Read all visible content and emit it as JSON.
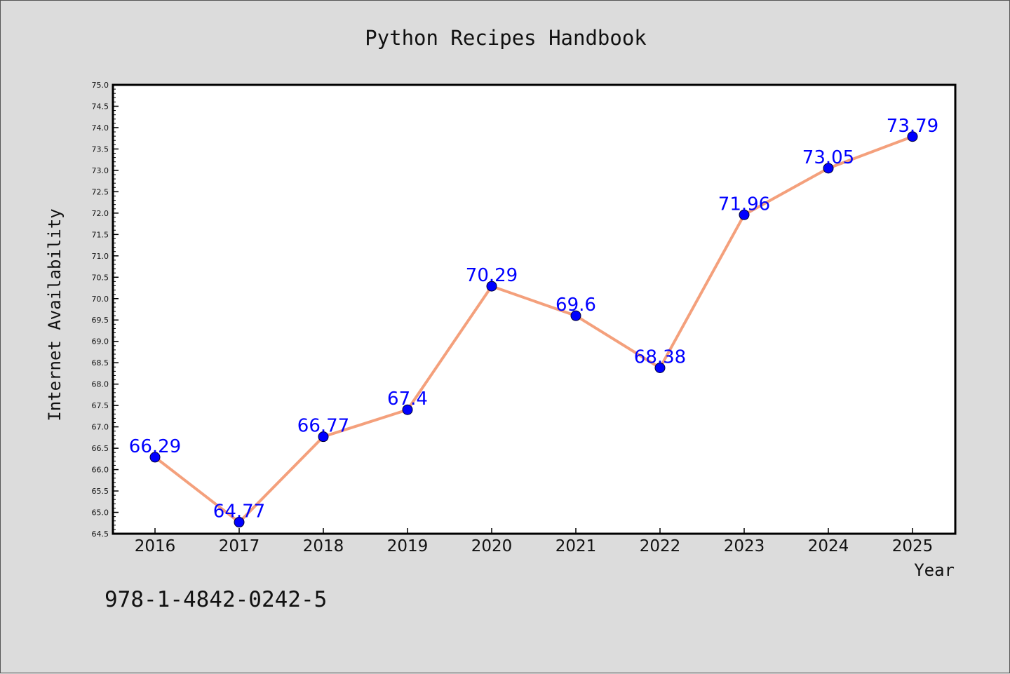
{
  "chart_data": {
    "type": "line",
    "title": "Python Recipes Handbook",
    "xlabel": "Year",
    "ylabel": "Internet Availability",
    "categories": [
      "2016",
      "2017",
      "2018",
      "2019",
      "2020",
      "2021",
      "2022",
      "2023",
      "2024",
      "2025"
    ],
    "series": [
      {
        "values": [
          66.29,
          64.77,
          66.77,
          67.4,
          70.29,
          69.6,
          68.38,
          71.96,
          73.05,
          73.79
        ],
        "data_labels": [
          "66.29",
          "64.77",
          "66.77",
          "67.4",
          "70.29",
          "69.6",
          "68.38",
          "71.96",
          "73.05",
          "73.79"
        ]
      }
    ],
    "ylim": [
      64.5,
      75.0
    ],
    "yticks": [
      "64.5",
      "65.0",
      "65.5",
      "66.0",
      "66.5",
      "67.0",
      "67.5",
      "68.0",
      "68.5",
      "69.0",
      "69.5",
      "70.0",
      "70.5",
      "71.0",
      "71.5",
      "72.0",
      "72.5",
      "73.0",
      "73.5",
      "74.0",
      "74.5",
      "75.0"
    ],
    "grid": false,
    "legend": "none",
    "colors": {
      "line": "#f4a07c",
      "marker": "#0000ff",
      "data_label": "#0000ff",
      "plot_background": "#ffffff",
      "figure_background": "#dcdcdc"
    }
  },
  "footer": {
    "isbn": "978-1-4842-0242-5"
  }
}
